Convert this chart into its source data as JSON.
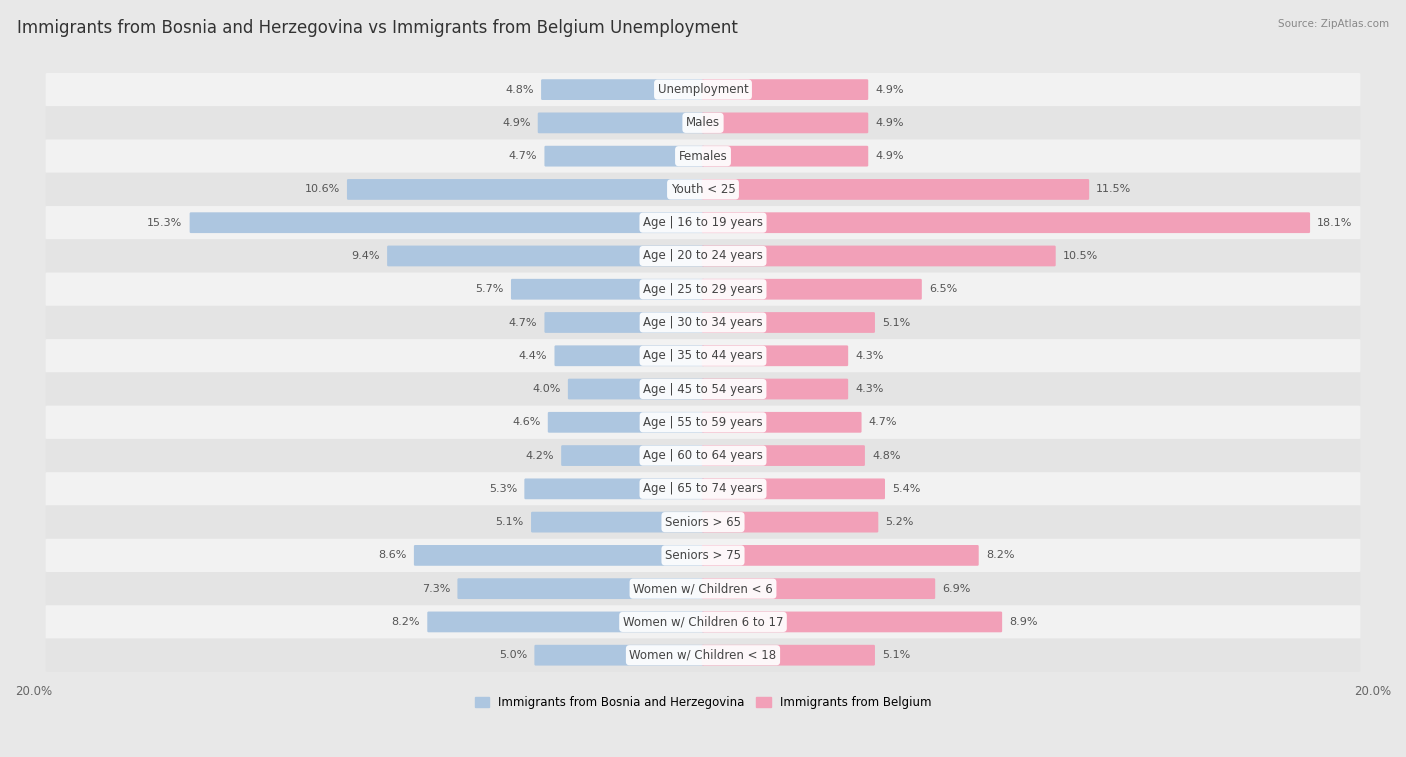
{
  "title": "Immigrants from Bosnia and Herzegovina vs Immigrants from Belgium Unemployment",
  "source": "Source: ZipAtlas.com",
  "categories": [
    "Unemployment",
    "Males",
    "Females",
    "Youth < 25",
    "Age | 16 to 19 years",
    "Age | 20 to 24 years",
    "Age | 25 to 29 years",
    "Age | 30 to 34 years",
    "Age | 35 to 44 years",
    "Age | 45 to 54 years",
    "Age | 55 to 59 years",
    "Age | 60 to 64 years",
    "Age | 65 to 74 years",
    "Seniors > 65",
    "Seniors > 75",
    "Women w/ Children < 6",
    "Women w/ Children 6 to 17",
    "Women w/ Children < 18"
  ],
  "bosnia_values": [
    4.8,
    4.9,
    4.7,
    10.6,
    15.3,
    9.4,
    5.7,
    4.7,
    4.4,
    4.0,
    4.6,
    4.2,
    5.3,
    5.1,
    8.6,
    7.3,
    8.2,
    5.0
  ],
  "belgium_values": [
    4.9,
    4.9,
    4.9,
    11.5,
    18.1,
    10.5,
    6.5,
    5.1,
    4.3,
    4.3,
    4.7,
    4.8,
    5.4,
    5.2,
    8.2,
    6.9,
    8.9,
    5.1
  ],
  "bosnia_color": "#adc6e0",
  "belgium_color": "#f2a0b8",
  "bosnia_label": "Immigrants from Bosnia and Herzegovina",
  "belgium_label": "Immigrants from Belgium",
  "axis_limit": 20.0,
  "bg_color": "#e8e8e8",
  "row_bg_even": "#f2f2f2",
  "row_bg_odd": "#e4e4e4",
  "title_fontsize": 12,
  "label_fontsize": 8.5,
  "value_fontsize": 8.0
}
